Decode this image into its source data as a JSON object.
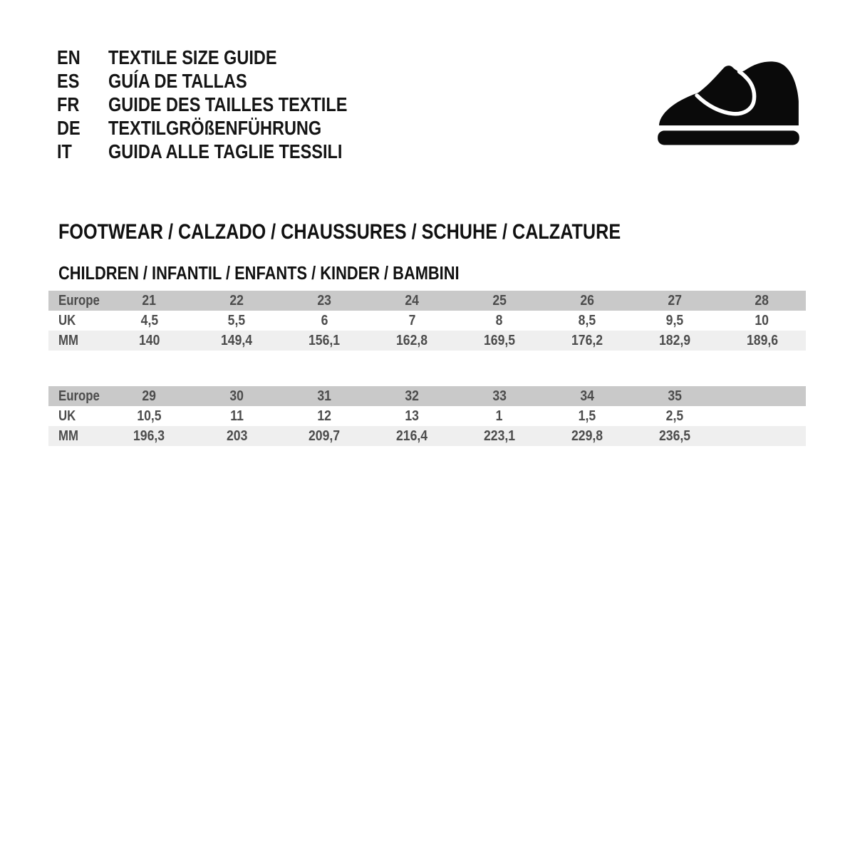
{
  "languages": [
    {
      "code": "EN",
      "label": "TEXTILE SIZE GUIDE"
    },
    {
      "code": "ES",
      "label": "GUÍA DE TALLAS"
    },
    {
      "code": "FR",
      "label": "GUIDE DES TAILLES TEXTILE"
    },
    {
      "code": "DE",
      "label": "TEXTILGRÖßENFÜHRUNG"
    },
    {
      "code": "IT",
      "label": "GUIDA ALLE TAGLIE TESSILI"
    }
  ],
  "icon": {
    "name": "child-shoe-icon",
    "color": "#0a0a0a"
  },
  "section": {
    "title": "FOOTWEAR / CALZADO / CHAUSSURES / SCHUHE / CALZATURE",
    "subtitle": "CHILDREN / INFANTIL / ENFANTS / KINDER / BAMBINI"
  },
  "colors": {
    "header_row_bg": "#c9c9c9",
    "mm_row_bg": "#efefef",
    "table_text": "#4c4c4c",
    "heading_text": "#111111"
  },
  "tables": [
    {
      "rows": [
        {
          "key": "europe",
          "label": "Europe",
          "values": [
            "21",
            "22",
            "23",
            "24",
            "25",
            "26",
            "27",
            "28"
          ]
        },
        {
          "key": "uk",
          "label": "UK",
          "values": [
            "4,5",
            "5,5",
            "6",
            "7",
            "8",
            "8,5",
            "9,5",
            "10"
          ]
        },
        {
          "key": "mm",
          "label": "MM",
          "values": [
            "140",
            "149,4",
            "156,1",
            "162,8",
            "169,5",
            "176,2",
            "182,9",
            "189,6"
          ]
        }
      ]
    },
    {
      "rows": [
        {
          "key": "europe",
          "label": "Europe",
          "values": [
            "29",
            "30",
            "31",
            "32",
            "33",
            "34",
            "35",
            ""
          ]
        },
        {
          "key": "uk",
          "label": "UK",
          "values": [
            "10,5",
            "11",
            "12",
            "13",
            "1",
            "1,5",
            "2,5",
            ""
          ]
        },
        {
          "key": "mm",
          "label": "MM",
          "values": [
            "196,3",
            "203",
            "209,7",
            "216,4",
            "223,1",
            "229,8",
            "236,5",
            ""
          ]
        }
      ]
    }
  ]
}
